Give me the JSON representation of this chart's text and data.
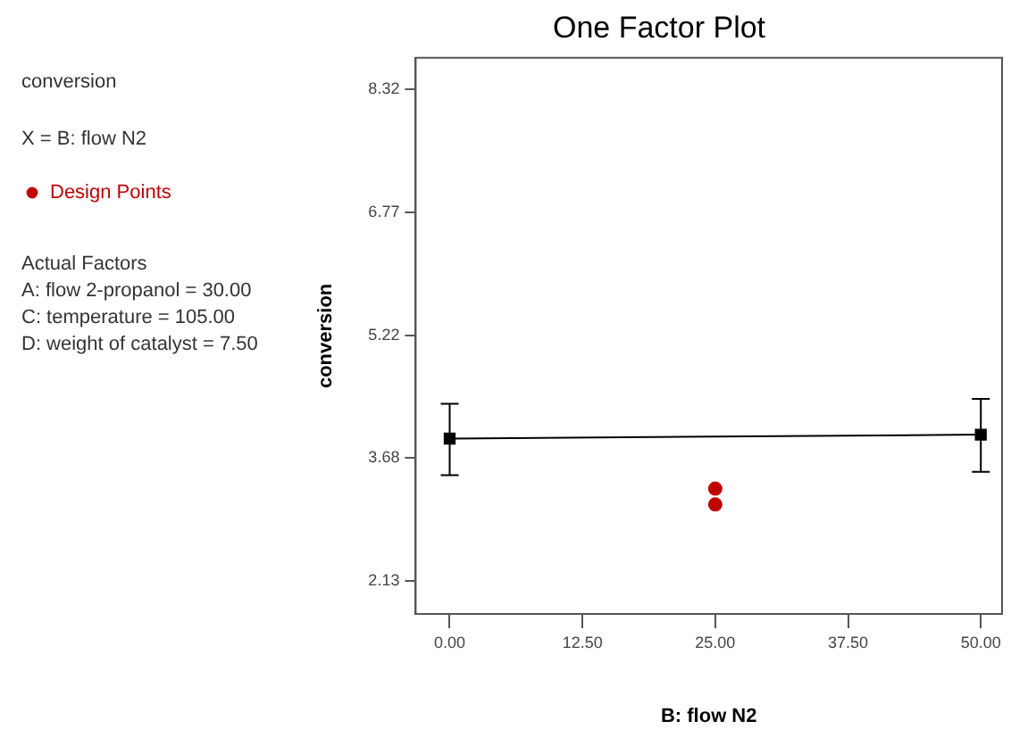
{
  "chart_data": {
    "type": "line",
    "title": "One Factor Plot",
    "xlabel": "B: flow N2",
    "ylabel": "conversion",
    "annotations": [
      "conversion",
      "X = B: flow N2",
      "Actual Factors",
      "A: flow 2-propanol = 30.00",
      "C: temperature = 105.00",
      "D: weight of catalyst = 7.50"
    ],
    "xlim": [
      -3.2,
      52
    ],
    "xticks": [
      {
        "value": 0,
        "label": "0.00"
      },
      {
        "value": 12.5,
        "label": "12.50"
      },
      {
        "value": 25,
        "label": "25.00"
      },
      {
        "value": 37.5,
        "label": "37.50"
      },
      {
        "value": 50,
        "label": "50.00"
      }
    ],
    "ylim": [
      1.71,
      8.72
    ],
    "yticks": [
      {
        "value": 2.13,
        "label": "2.13"
      },
      {
        "value": 3.68,
        "label": "3.68"
      },
      {
        "value": 5.22,
        "label": "5.22"
      },
      {
        "value": 6.77,
        "label": "6.77"
      },
      {
        "value": 8.32,
        "label": "8.32"
      }
    ],
    "grid": false,
    "legend": "top left",
    "marker": "square",
    "line_style": "solid",
    "series": [
      {
        "type": "line",
        "color": "#000000",
        "x": [
          0,
          50
        ],
        "values": [
          3.92,
          3.97
        ],
        "errors": [
          [
            3.46,
            4.36
          ],
          [
            3.5,
            4.42
          ]
        ]
      },
      {
        "type": "scatter",
        "name": "Design Points",
        "color": "#c00000",
        "marker": "circle",
        "x": [
          25,
          25
        ],
        "values": [
          3.29,
          3.09
        ]
      }
    ]
  }
}
